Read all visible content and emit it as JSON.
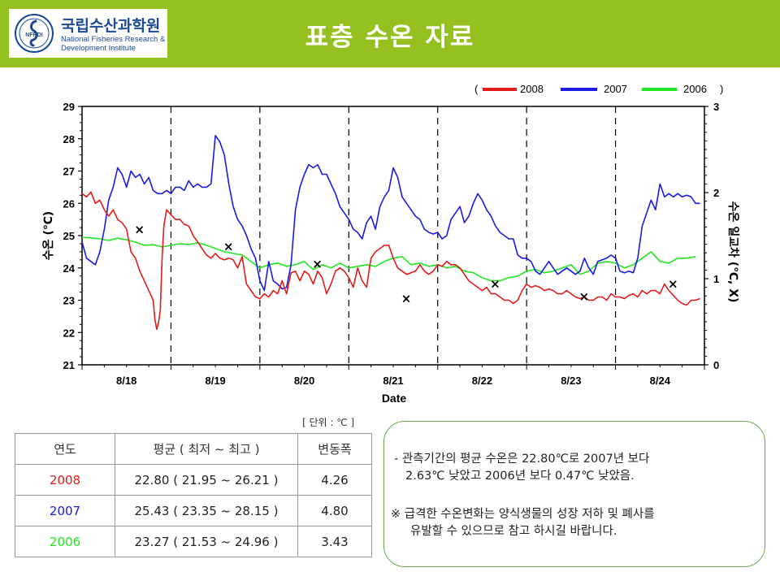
{
  "header": {
    "title": "표층 수온 자료",
    "logo": {
      "name_ko": "국립수산과학원",
      "name_en_line1": "National Fisheries Research &",
      "name_en_line2": "Development Institute",
      "emblem_text": "NFRDI"
    },
    "bg_color": "#94c11f"
  },
  "chart_data": {
    "type": "line",
    "xlabel": "Date",
    "ylabel_left": "수온 (℃)",
    "ylabel_right": "수온 일교차 (℃, X)",
    "ylim_left": [
      21,
      29
    ],
    "ylim_right": [
      0,
      3
    ],
    "yticks_left": [
      "21",
      "22",
      "23",
      "24",
      "25",
      "26",
      "27",
      "28",
      "29"
    ],
    "yticks_right": [
      "0",
      "1",
      "2",
      "3"
    ],
    "categories": [
      "8/18",
      "8/19",
      "8/20",
      "8/21",
      "8/22",
      "8/23",
      "8/24"
    ],
    "legend": {
      "open": "(",
      "close": ")",
      "position": "top-right"
    },
    "series": [
      {
        "name": "2008",
        "color": "#e31b1b",
        "x": [
          0,
          0.05,
          0.1,
          0.15,
          0.2,
          0.25,
          0.3,
          0.35,
          0.4,
          0.45,
          0.5,
          0.55,
          0.6,
          0.65,
          0.7,
          0.75,
          0.8,
          0.82,
          0.84,
          0.86,
          0.88,
          0.9,
          0.92,
          0.95,
          1.0,
          1.05,
          1.1,
          1.15,
          1.2,
          1.25,
          1.3,
          1.35,
          1.4,
          1.45,
          1.5,
          1.55,
          1.6,
          1.65,
          1.7,
          1.75,
          1.8,
          1.85,
          1.9,
          1.95,
          2.0,
          2.05,
          2.1,
          2.15,
          2.2,
          2.25,
          2.3,
          2.35,
          2.4,
          2.45,
          2.5,
          2.55,
          2.6,
          2.65,
          2.7,
          2.75,
          2.8,
          2.85,
          2.9,
          2.95,
          3.0,
          3.05,
          3.1,
          3.15,
          3.2,
          3.25,
          3.3,
          3.35,
          3.4,
          3.45,
          3.5,
          3.55,
          3.6,
          3.65,
          3.7,
          3.75,
          3.8,
          3.85,
          3.9,
          3.95,
          4.0,
          4.05,
          4.1,
          4.15,
          4.2,
          4.25,
          4.3,
          4.35,
          4.4,
          4.45,
          4.5,
          4.55,
          4.6,
          4.65,
          4.7,
          4.75,
          4.8,
          4.85,
          4.9,
          4.95,
          5.0,
          5.05,
          5.1,
          5.15,
          5.2,
          5.25,
          5.3,
          5.35,
          5.4,
          5.45,
          5.5,
          5.55,
          5.6,
          5.65,
          5.7,
          5.75,
          5.8,
          5.85,
          5.9,
          5.95,
          6.0,
          6.05,
          6.1,
          6.15,
          6.2,
          6.25,
          6.3,
          6.35,
          6.4,
          6.45,
          6.5,
          6.55,
          6.6,
          6.65,
          6.7,
          6.75,
          6.8,
          6.85,
          6.9,
          6.95
        ],
        "values": [
          26.3,
          26.2,
          26.35,
          26.0,
          26.1,
          25.8,
          25.6,
          25.8,
          25.5,
          25.4,
          25.2,
          24.5,
          24.3,
          23.9,
          23.6,
          23.3,
          23.0,
          22.4,
          22.1,
          22.3,
          22.7,
          24.3,
          25.3,
          25.8,
          25.65,
          25.5,
          25.5,
          25.35,
          25.3,
          25.0,
          24.8,
          24.6,
          24.4,
          24.3,
          24.45,
          24.3,
          24.25,
          24.3,
          24.25,
          24.0,
          24.35,
          23.5,
          23.3,
          23.1,
          23.05,
          23.2,
          23.1,
          23.3,
          23.2,
          23.6,
          23.2,
          23.85,
          23.9,
          23.6,
          23.9,
          23.8,
          23.5,
          23.9,
          23.7,
          23.2,
          23.5,
          23.9,
          24.0,
          23.9,
          23.7,
          23.4,
          24.0,
          23.6,
          23.4,
          24.3,
          24.5,
          24.6,
          24.7,
          24.7,
          24.3,
          24.0,
          23.9,
          23.8,
          23.85,
          23.9,
          24.1,
          23.9,
          23.8,
          23.9,
          24.1,
          24.05,
          24.2,
          24.1,
          24.1,
          24.0,
          23.8,
          23.6,
          23.5,
          23.4,
          23.3,
          23.4,
          23.2,
          23.2,
          23.1,
          23.0,
          23.0,
          22.9,
          23.0,
          23.3,
          23.5,
          23.4,
          23.45,
          23.4,
          23.3,
          23.35,
          23.3,
          23.2,
          23.2,
          23.3,
          23.2,
          23.1,
          23.05,
          23.1,
          23.0,
          23.0,
          23.1,
          23.1,
          23.0,
          23.2,
          23.1,
          23.1,
          23.05,
          23.15,
          23.2,
          23.1,
          23.3,
          23.2,
          23.3,
          23.3,
          23.2,
          23.5,
          23.3,
          23.15,
          23.0,
          22.9,
          22.85,
          23.0,
          23.0,
          23.05
        ]
      },
      {
        "name": "2007",
        "color": "#1a1ae0",
        "x": [
          0,
          0.05,
          0.1,
          0.15,
          0.2,
          0.25,
          0.3,
          0.35,
          0.4,
          0.45,
          0.5,
          0.55,
          0.6,
          0.65,
          0.7,
          0.75,
          0.8,
          0.85,
          0.9,
          0.95,
          1.0,
          1.05,
          1.1,
          1.15,
          1.2,
          1.25,
          1.3,
          1.35,
          1.4,
          1.45,
          1.5,
          1.55,
          1.6,
          1.65,
          1.7,
          1.75,
          1.8,
          1.85,
          1.9,
          1.95,
          2.0,
          2.05,
          2.1,
          2.15,
          2.2,
          2.25,
          2.3,
          2.35,
          2.4,
          2.45,
          2.5,
          2.55,
          2.6,
          2.65,
          2.7,
          2.75,
          2.8,
          2.85,
          2.9,
          2.95,
          3.0,
          3.05,
          3.1,
          3.15,
          3.2,
          3.25,
          3.3,
          3.35,
          3.4,
          3.45,
          3.5,
          3.55,
          3.6,
          3.65,
          3.7,
          3.75,
          3.8,
          3.85,
          3.9,
          3.95,
          4.0,
          4.05,
          4.1,
          4.15,
          4.2,
          4.25,
          4.3,
          4.35,
          4.4,
          4.45,
          4.5,
          4.55,
          4.6,
          4.65,
          4.7,
          4.75,
          4.8,
          4.85,
          4.9,
          4.95,
          5.0,
          5.05,
          5.1,
          5.15,
          5.2,
          5.25,
          5.3,
          5.35,
          5.4,
          5.45,
          5.5,
          5.55,
          5.6,
          5.65,
          5.7,
          5.75,
          5.8,
          5.85,
          5.9,
          5.95,
          6.0,
          6.05,
          6.1,
          6.15,
          6.2,
          6.25,
          6.3,
          6.35,
          6.4,
          6.45,
          6.5,
          6.55,
          6.6,
          6.65,
          6.7,
          6.75,
          6.8,
          6.85,
          6.9,
          6.95
        ],
        "values": [
          24.8,
          24.3,
          24.2,
          24.1,
          24.5,
          25.2,
          26.1,
          26.5,
          27.1,
          26.9,
          26.5,
          27.0,
          26.8,
          26.9,
          26.6,
          26.8,
          26.4,
          26.3,
          26.3,
          26.4,
          26.3,
          26.5,
          26.5,
          26.4,
          26.7,
          26.5,
          26.6,
          26.5,
          26.5,
          26.6,
          28.1,
          27.9,
          27.5,
          26.6,
          25.9,
          25.5,
          25.3,
          25.0,
          24.6,
          24.3,
          23.6,
          23.3,
          24.2,
          23.6,
          23.5,
          23.35,
          23.4,
          24.1,
          25.8,
          26.5,
          26.9,
          27.2,
          27.1,
          27.2,
          26.9,
          26.9,
          26.6,
          26.3,
          25.9,
          25.7,
          25.5,
          25.2,
          25.1,
          24.9,
          25.4,
          25.6,
          25.2,
          25.9,
          26.2,
          26.4,
          27.1,
          26.8,
          26.2,
          26.0,
          25.8,
          25.6,
          25.5,
          25.2,
          25.1,
          25.05,
          25.1,
          24.9,
          25.0,
          25.5,
          25.7,
          25.9,
          25.4,
          25.6,
          26.0,
          26.3,
          26.1,
          25.8,
          25.6,
          25.3,
          25.1,
          25.0,
          24.9,
          24.9,
          24.4,
          24.3,
          24.3,
          24.2,
          23.9,
          23.8,
          24.0,
          24.2,
          24.0,
          23.8,
          23.9,
          24.0,
          23.9,
          23.8,
          23.9,
          24.3,
          24.0,
          23.8,
          24.2,
          24.25,
          24.3,
          24.4,
          24.3,
          23.9,
          23.85,
          23.9,
          23.85,
          24.3,
          25.3,
          25.7,
          26.1,
          25.8,
          26.6,
          26.2,
          26.3,
          26.2,
          26.3,
          26.2,
          26.25,
          26.2,
          26.0,
          26.0
        ]
      },
      {
        "name": "2006",
        "color": "#22e622",
        "x": [
          0,
          0.1,
          0.2,
          0.3,
          0.4,
          0.5,
          0.6,
          0.7,
          0.8,
          0.9,
          1.0,
          1.1,
          1.2,
          1.3,
          1.4,
          1.5,
          1.6,
          1.7,
          1.8,
          1.9,
          2.0,
          2.1,
          2.2,
          2.3,
          2.4,
          2.5,
          2.6,
          2.7,
          2.8,
          2.9,
          3.0,
          3.1,
          3.2,
          3.3,
          3.4,
          3.5,
          3.6,
          3.7,
          3.8,
          3.9,
          4.0,
          4.1,
          4.2,
          4.3,
          4.4,
          4.5,
          4.6,
          4.7,
          4.8,
          4.9,
          5.0,
          5.1,
          5.2,
          5.3,
          5.4,
          5.5,
          5.6,
          5.7,
          5.8,
          5.9,
          6.0,
          6.1,
          6.2,
          6.3,
          6.4,
          6.5,
          6.6,
          6.7,
          6.8,
          6.9
        ],
        "values": [
          24.95,
          24.93,
          24.9,
          24.85,
          24.92,
          24.87,
          24.8,
          24.7,
          24.72,
          24.65,
          24.7,
          24.75,
          24.72,
          24.78,
          24.7,
          24.6,
          24.5,
          24.45,
          24.4,
          24.2,
          24.0,
          24.1,
          24.15,
          24.05,
          24.1,
          24.2,
          23.95,
          24.1,
          24.0,
          24.15,
          24.0,
          24.05,
          24.1,
          24.05,
          24.2,
          24.3,
          24.35,
          24.1,
          24.15,
          24.05,
          24.1,
          24.0,
          24.05,
          23.9,
          23.85,
          23.7,
          23.6,
          23.6,
          23.7,
          23.75,
          23.9,
          23.95,
          23.85,
          23.9,
          24.0,
          24.1,
          23.8,
          23.9,
          24.15,
          24.2,
          24.15,
          24.0,
          24.1,
          24.3,
          24.5,
          24.2,
          24.15,
          24.3,
          24.3,
          24.35
        ]
      }
    ],
    "markers": {
      "symbol": "×",
      "axis": "right",
      "x": [
        0.5,
        1.5,
        2.5,
        3.5,
        4.5,
        5.5,
        6.5
      ],
      "values": [
        1.58,
        1.38,
        1.18,
        0.78,
        0.95,
        0.8,
        0.95
      ]
    }
  },
  "table": {
    "headers": [
      "연도",
      "평균 ( 최저 ~ 최고 )",
      "변동폭"
    ],
    "rows": [
      {
        "year": "2008",
        "avg": "22.80 ( 21.95 ~ 26.21 )",
        "range": "4.26",
        "color": "#e31b1b"
      },
      {
        "year": "2007",
        "avg": "25.43 ( 23.35 ~ 28.15 )",
        "range": "4.80",
        "color": "#1a1ae0"
      },
      {
        "year": "2006",
        "avg": "23.27 ( 21.53 ~ 24.96 )",
        "range": "3.43",
        "color": "#22e622"
      }
    ],
    "unit_note": "[ 단위 : ℃ ]"
  },
  "notes": {
    "line1a": "- 관측기간의 평균 수온은 22.80℃로  2007년 보다",
    "line1b": "2.63℃ 낮았고 2006년 보다 0.47℃ 낮았음.",
    "line2a": "※ 급격한 수온변화는 양식생물의 성장 저하 및 폐사를",
    "line2b": "유발할 수 있으므로 참고 하시길 바랍니다."
  }
}
